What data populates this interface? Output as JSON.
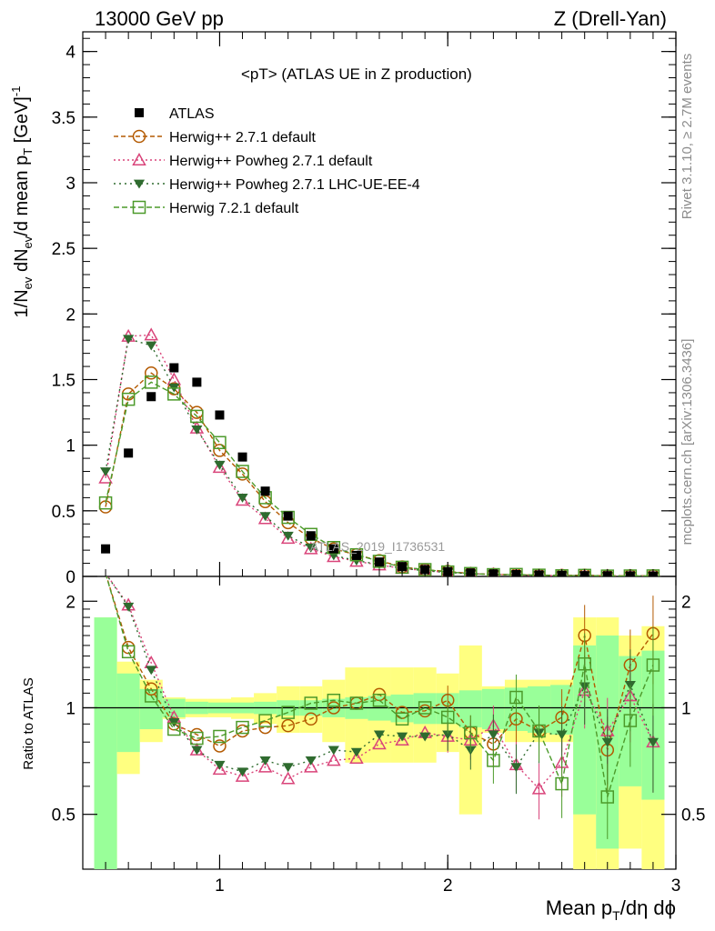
{
  "header": {
    "left": "13000 GeV pp",
    "right": "Z (Drell-Yan)"
  },
  "chart_data": {
    "type": "line",
    "title": "<pT> (ATLAS UE in Z production)",
    "xlabel": "Mean p_T/dη dϕ",
    "ylabel": "1/N_ev dN_ev/d mean p_T [GeV]^-1",
    "ratio_ylabel": "Ratio to ATLAS",
    "watermark": "ATLAS_2019_I1736531",
    "side_text_top": "Rivet 3.1.10, ≥ 2.7M events",
    "side_text_bottom": "mcplots.cern.ch [arXiv:1306.3436]",
    "xlim": [
      0.4,
      3.0
    ],
    "ylim": [
      0,
      4.15
    ],
    "ratio_ylim": [
      0.35,
      2.35
    ],
    "ratio_log": true,
    "x_ticks": [
      "1",
      "2",
      "3"
    ],
    "y_ticks": [
      "0",
      "0.5",
      "1",
      "1.5",
      "2",
      "2.5",
      "3",
      "3.5",
      "4"
    ],
    "ratio_ticks": [
      "0.5",
      "1",
      "2"
    ],
    "x": [
      0.5,
      0.6,
      0.7,
      0.8,
      0.9,
      1.0,
      1.1,
      1.2,
      1.3,
      1.4,
      1.5,
      1.6,
      1.7,
      1.8,
      1.9,
      2.0,
      2.1,
      2.2,
      2.3,
      2.4,
      2.5,
      2.6,
      2.7,
      2.8,
      2.9
    ],
    "data": {
      "name": "ATLAS",
      "values": [
        0.21,
        0.94,
        1.37,
        1.59,
        1.48,
        1.23,
        0.91,
        0.65,
        0.46,
        0.31,
        0.21,
        0.16,
        0.11,
        0.075,
        0.052,
        0.036,
        0.026,
        0.019,
        0.014,
        0.011,
        0.008,
        0.006,
        0.005,
        0.0038,
        0.003
      ]
    },
    "band_green": [
      0.8,
      0.25,
      0.13,
      0.06,
      0.04,
      0.035,
      0.035,
      0.04,
      0.05,
      0.05,
      0.06,
      0.07,
      0.08,
      0.09,
      0.1,
      0.1,
      0.12,
      0.13,
      0.14,
      0.15,
      0.16,
      0.5,
      0.6,
      0.4,
      0.45
    ],
    "band_yellow": [
      0.8,
      0.35,
      0.2,
      0.07,
      0.06,
      0.06,
      0.07,
      0.1,
      0.15,
      0.15,
      0.2,
      0.3,
      0.3,
      0.3,
      0.3,
      0.25,
      0.5,
      0.15,
      0.2,
      0.2,
      0.2,
      0.8,
      0.8,
      0.6,
      0.7
    ],
    "series": [
      {
        "name": "Herwig++ 2.7.1 default",
        "color": "#b35900",
        "dash": "5,3",
        "marker": "circle-open",
        "values": [
          0.53,
          1.39,
          1.55,
          1.43,
          1.25,
          0.96,
          0.78,
          0.57,
          0.41,
          0.29,
          0.21,
          0.165,
          0.12,
          0.073,
          0.051,
          0.038,
          0.022,
          0.015,
          0.013,
          0.0095,
          0.0075,
          0.0096,
          0.0038,
          0.005,
          0.0048
        ]
      },
      {
        "name": "Herwig++ Powheg 2.7.1 default",
        "color": "#d9447a",
        "dash": "2,3",
        "marker": "triangle-up-open",
        "values": [
          0.75,
          1.83,
          1.84,
          1.5,
          1.13,
          0.83,
          0.58,
          0.44,
          0.29,
          0.21,
          0.15,
          0.115,
          0.087,
          0.061,
          0.044,
          0.03,
          0.021,
          0.017,
          0.0097,
          0.0065,
          0.0056,
          0.0067,
          0.0043,
          0.0041,
          0.0024
        ]
      },
      {
        "name": "Herwig++ Powheg 2.7.1 LHC-UE-EE-4",
        "color": "#2f6b2f",
        "dash": "2,4",
        "marker": "triangle-down",
        "values": [
          0.8,
          1.81,
          1.76,
          1.44,
          1.12,
          0.85,
          0.6,
          0.46,
          0.31,
          0.22,
          0.16,
          0.12,
          0.092,
          0.062,
          0.043,
          0.03,
          0.02,
          0.016,
          0.0095,
          0.0093,
          0.0067,
          0.0069,
          0.004,
          0.0044,
          0.0024
        ]
      },
      {
        "name": "Herwig 7.2.1 default",
        "color": "#4c9a2a",
        "dash": "6,3",
        "marker": "square-open",
        "values": [
          0.56,
          1.35,
          1.48,
          1.39,
          1.22,
          1.02,
          0.8,
          0.6,
          0.45,
          0.32,
          0.22,
          0.165,
          0.115,
          0.07,
          0.052,
          0.034,
          0.022,
          0.0135,
          0.015,
          0.0095,
          0.0049,
          0.008,
          0.0028,
          0.0035,
          0.004
        ]
      }
    ],
    "ratios": [
      [
        2.5,
        1.48,
        1.13,
        0.9,
        0.84,
        0.78,
        0.86,
        0.88,
        0.89,
        0.93,
        1.0,
        1.03,
        1.09,
        0.97,
        0.98,
        1.05,
        0.85,
        0.79,
        0.93,
        0.86,
        0.94,
        1.6,
        0.76,
        1.32,
        1.62
      ],
      [
        3.5,
        1.95,
        1.34,
        0.94,
        0.76,
        0.67,
        0.64,
        0.68,
        0.63,
        0.68,
        0.71,
        0.72,
        0.79,
        0.81,
        0.85,
        0.83,
        0.81,
        0.89,
        0.69,
        0.59,
        0.7,
        1.12,
        0.86,
        1.08,
        0.8
      ],
      [
        3.8,
        1.93,
        1.28,
        0.91,
        0.76,
        0.69,
        0.66,
        0.71,
        0.68,
        0.71,
        0.76,
        0.75,
        0.84,
        0.83,
        0.83,
        0.84,
        0.76,
        0.84,
        0.68,
        0.85,
        0.84,
        1.15,
        0.8,
        1.16,
        0.8
      ],
      [
        2.7,
        1.44,
        1.08,
        0.87,
        0.82,
        0.83,
        0.88,
        0.92,
        0.97,
        1.03,
        1.05,
        1.03,
        1.05,
        0.93,
        1.0,
        0.94,
        0.85,
        0.71,
        1.07,
        0.86,
        0.61,
        1.33,
        0.56,
        0.92,
        1.32
      ]
    ]
  }
}
